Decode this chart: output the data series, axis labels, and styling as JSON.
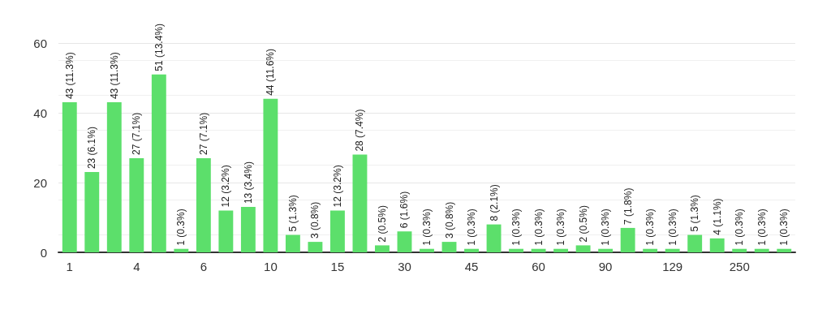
{
  "chart_data": {
    "type": "bar",
    "categories": [
      "1",
      null,
      null,
      "4",
      null,
      null,
      "6",
      null,
      null,
      "10",
      null,
      null,
      "15",
      null,
      null,
      "30",
      null,
      null,
      "45",
      null,
      null,
      "60",
      null,
      null,
      "90",
      null,
      null,
      "129",
      null,
      null,
      "250",
      null,
      null
    ],
    "values": [
      43,
      23,
      43,
      27,
      51,
      1,
      27,
      12,
      13,
      44,
      5,
      3,
      12,
      28,
      2,
      6,
      1,
      3,
      1,
      8,
      1,
      1,
      1,
      2,
      1,
      7,
      1,
      1,
      5,
      4,
      1,
      1,
      1
    ],
    "value_labels": [
      "43 (11.3%)",
      "23 (6.1%)",
      "43 (11.3%)",
      "27 (7.1%)",
      "51 (13.4%)",
      "1 (0.3%)",
      "27 (7.1%)",
      "12 (3.2%)",
      "13 (3.4%)",
      "44 (11.6%)",
      "5 (1.3%)",
      "3 (0.8%)",
      "12 (3.2%)",
      "28 (7.4%)",
      "2 (0.5%)",
      "6 (1.6%)",
      "1 (0.3%)",
      "3 (0.8%)",
      "1 (0.3%)",
      "8 (2.1%)",
      "1 (0.3%)",
      "1 (0.3%)",
      "1 (0.3%)",
      "2 (0.5%)",
      "1 (0.3%)",
      "7 (1.8%)",
      "1 (0.3%)",
      "1 (0.3%)",
      "5 (1.3%)",
      "4 (1.1%)",
      "1 (0.3%)",
      "1 (0.3%)",
      "1 (0.3%)"
    ],
    "color": "#5cdf6b",
    "ylim": [
      0,
      60
    ],
    "yticks": [
      0,
      20,
      40,
      60
    ],
    "grid": "y"
  }
}
